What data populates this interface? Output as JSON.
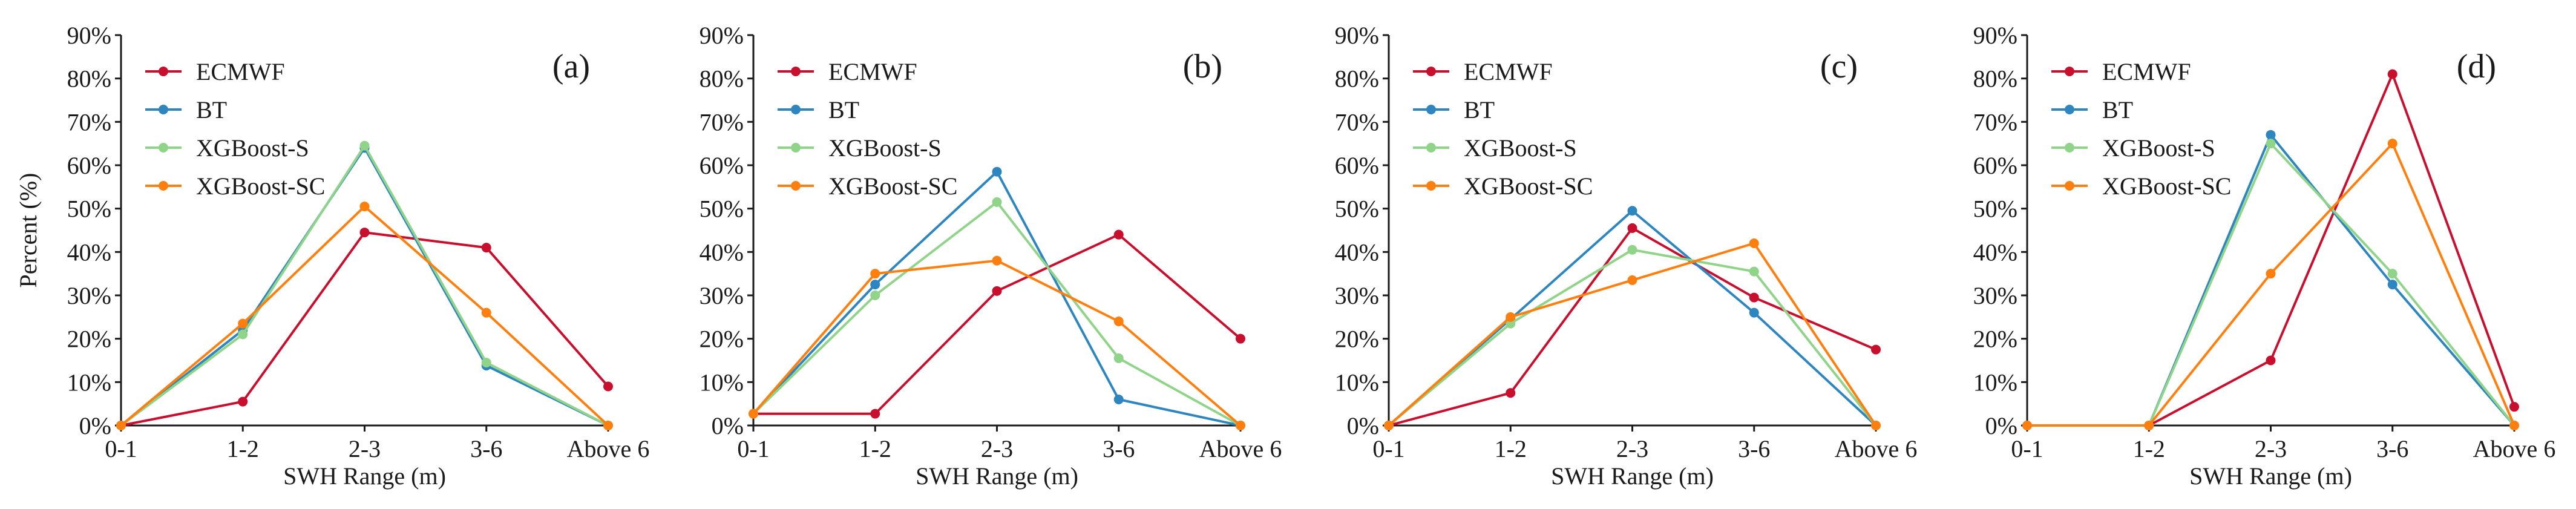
{
  "colors": {
    "ECMWF": "#c8102e",
    "BT": "#2e86c1",
    "XGBoost-S": "#90d48a",
    "XGBoost-SC": "#ff7f0e"
  },
  "chart_data": [
    {
      "type": "line",
      "panel": "(a)",
      "xlabel": "SWH Range (m)",
      "ylabel": "Percent (%)",
      "categories": [
        "0-1",
        "1-2",
        "2-3",
        "3-6",
        "Above 6"
      ],
      "ylim": [
        0,
        90
      ],
      "yticks": [
        "0%",
        "10%",
        "20%",
        "30%",
        "40%",
        "50%",
        "60%",
        "70%",
        "80%",
        "90%"
      ],
      "grid": false,
      "legend": "top-left",
      "series": [
        {
          "name": "ECMWF",
          "values": [
            0,
            5.5,
            44.5,
            41,
            9
          ]
        },
        {
          "name": "BT",
          "values": [
            0,
            22,
            64,
            13.8,
            0
          ]
        },
        {
          "name": "XGBoost-S",
          "values": [
            0,
            21,
            64.5,
            14.5,
            0
          ]
        },
        {
          "name": "XGBoost-SC",
          "values": [
            0,
            23.5,
            50.5,
            26,
            0
          ]
        }
      ]
    },
    {
      "type": "line",
      "panel": "(b)",
      "xlabel": "SWH Range (m)",
      "ylabel": "",
      "categories": [
        "0-1",
        "1-2",
        "2-3",
        "3-6",
        "Above 6"
      ],
      "ylim": [
        0,
        90
      ],
      "yticks": [
        "0%",
        "10%",
        "20%",
        "30%",
        "40%",
        "50%",
        "60%",
        "70%",
        "80%",
        "90%"
      ],
      "grid": false,
      "legend": "top-left",
      "series": [
        {
          "name": "ECMWF",
          "values": [
            2.7,
            2.7,
            31,
            44,
            20
          ]
        },
        {
          "name": "BT",
          "values": [
            2.7,
            32.5,
            58.5,
            6,
            0
          ]
        },
        {
          "name": "XGBoost-S",
          "values": [
            2.7,
            30,
            51.5,
            15.5,
            0
          ]
        },
        {
          "name": "XGBoost-SC",
          "values": [
            2.7,
            35,
            38,
            24,
            0
          ]
        }
      ]
    },
    {
      "type": "line",
      "panel": "(c)",
      "xlabel": "SWH Range (m)",
      "ylabel": "",
      "categories": [
        "0-1",
        "1-2",
        "2-3",
        "3-6",
        "Above 6"
      ],
      "ylim": [
        0,
        90
      ],
      "yticks": [
        "0%",
        "10%",
        "20%",
        "30%",
        "40%",
        "50%",
        "60%",
        "70%",
        "80%",
        "90%"
      ],
      "grid": false,
      "legend": "top-left",
      "series": [
        {
          "name": "ECMWF",
          "values": [
            0,
            7.5,
            45.5,
            29.5,
            17.5
          ]
        },
        {
          "name": "BT",
          "values": [
            0,
            24.5,
            49.5,
            26,
            0
          ]
        },
        {
          "name": "XGBoost-S",
          "values": [
            0,
            23.5,
            40.5,
            35.5,
            0
          ]
        },
        {
          "name": "XGBoost-SC",
          "values": [
            0,
            25,
            33.5,
            42,
            0
          ]
        }
      ]
    },
    {
      "type": "line",
      "panel": "(d)",
      "xlabel": "SWH Range (m)",
      "ylabel": "",
      "categories": [
        "0-1",
        "1-2",
        "2-3",
        "3-6",
        "Above 6"
      ],
      "ylim": [
        0,
        90
      ],
      "yticks": [
        "0%",
        "10%",
        "20%",
        "30%",
        "40%",
        "50%",
        "60%",
        "70%",
        "80%",
        "90%"
      ],
      "grid": false,
      "legend": "top-left",
      "series": [
        {
          "name": "ECMWF",
          "values": [
            0,
            0,
            15,
            81,
            4.3
          ]
        },
        {
          "name": "BT",
          "values": [
            0,
            0,
            67,
            32.5,
            0
          ]
        },
        {
          "name": "XGBoost-S",
          "values": [
            0,
            0,
            65,
            35,
            0
          ]
        },
        {
          "name": "XGBoost-SC",
          "values": [
            0,
            0,
            35,
            65,
            0
          ]
        }
      ]
    }
  ]
}
